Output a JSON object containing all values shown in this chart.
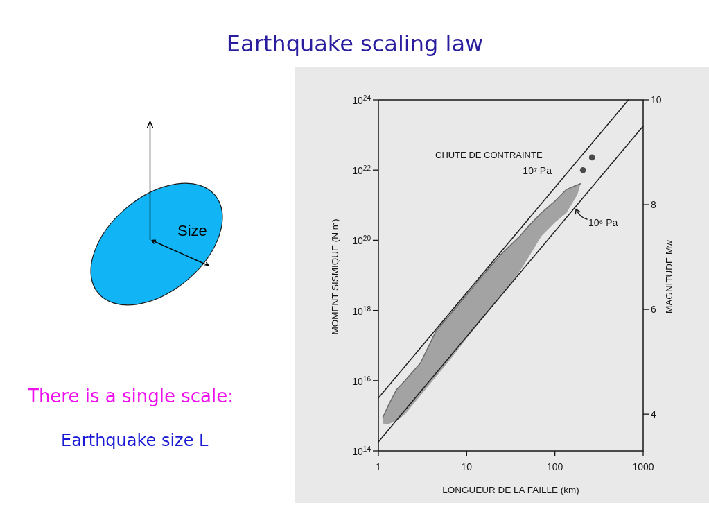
{
  "chart_data": {
    "type": "line",
    "title": "Earthquake scaling law",
    "xlabel": "LONGUEUR DE LA FAILLE (km)",
    "ylabel": "MOMENT SISMIQUE (N m)",
    "y2label": "MAGNITUDE Mw",
    "annotations": [
      "CHUTE DE CONTRAINTE",
      "There is a single scale:",
      "Earthquake size L",
      "Size"
    ],
    "log": "xy",
    "xlim": [
      1,
      1000
    ],
    "xticks": [
      1,
      10,
      100,
      1000
    ],
    "ylim": [
      100000000000000.0,
      1e+24
    ],
    "yticks": [
      {
        "value": 100000000000000.0,
        "label": "10$^{14}$"
      },
      {
        "value": 1e+16,
        "label": "10$^{16}$"
      },
      {
        "value": 1e+18,
        "label": "10$^{18}$"
      },
      {
        "value": 1e+20,
        "label": "10$^{20}$"
      },
      {
        "value": 1e+22,
        "label": "10$^{22}$"
      },
      {
        "value": 1e+24,
        "label": "10$^{24}$"
      }
    ],
    "y2lim": [
      3.3,
      10
    ],
    "y2ticks": [
      4,
      6,
      8,
      10
    ],
    "series": [
      {
        "color": "#6a6a6a",
        "x": [
          1.12,
          1.3,
          1.6,
          2,
          3,
          4.5,
          7,
          10,
          15,
          25,
          40,
          50,
          70,
          100,
          135,
          180,
          195
        ],
        "values": [
          890000000000000.0,
          2000000000000000.0,
          5500000000000000.0,
          1e+16,
          3.2e+16,
          2.6e+17,
          9.5e+17,
          2.8e+18,
          9.5e+18,
          4.2e+19,
          1.3e+20,
          2.5e+20,
          6e+20,
          1.3e+21,
          2.8e+21,
          3.8e+21,
          4.1e+21
        ],
        "lower": [
          600000000000000.0,
          580000000000000.0,
          710000000000000.0,
          1100000000000000.0,
          3800000000000000.0,
          1.3e+16,
          5e+16,
          1.6e+17,
          5.6e+17,
          2.7e+18,
          1.3e+19,
          3.2e+19,
          1.3e+20,
          3.2e+20,
          6e+20,
          2e+21,
          4.1e+21
        ],
        "upper": [
          890000000000000.0,
          2000000000000000.0,
          5500000000000000.0,
          1e+16,
          3.2e+16,
          2.6e+17,
          9.5e+17,
          2.8e+18,
          9.5e+18,
          4.2e+19,
          1.3e+20,
          2.5e+20,
          6e+20,
          1.3e+21,
          2.8e+21,
          3.8e+21,
          4.1e+21
        ]
      },
      {
        "name": "10⁷ Pa",
        "color": "#1e1e1e",
        "x": [
          1,
          680
        ],
        "values": [
          3200000000000000.0,
          1e+24
        ]
      },
      {
        "name": "10⁶ Pa",
        "color": "#1e1e1e",
        "x": [
          1,
          1000
        ],
        "values": [
          180000000000000.0,
          1.8e+23
        ]
      },
      {
        "type": "scatter",
        "color": "#4a4a4a",
        "marker": "circle",
        "x": [
          208,
          263
        ],
        "values": [
          1e+22,
          2.3e+22
        ]
      }
    ]
  }
}
